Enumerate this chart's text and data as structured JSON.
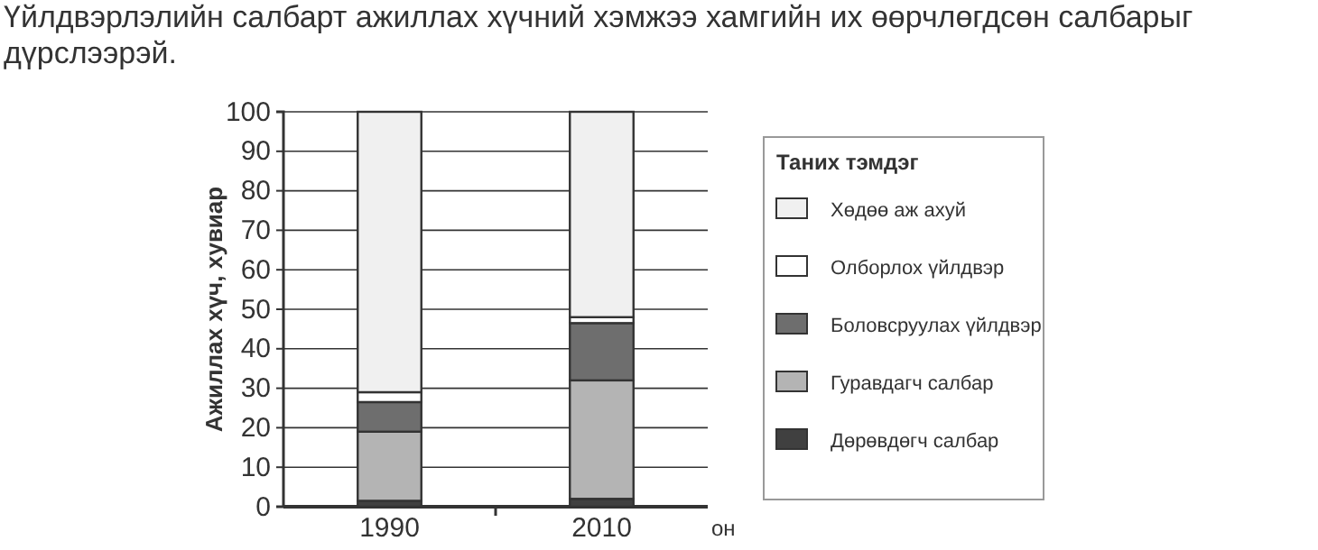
{
  "chart_data": {
    "type": "bar",
    "stacked": true,
    "title": "Үйлдвэрлэлийн салбарт ажиллах хүчний хэмжээ хамгийн их өөрчлөгдсөн салбарыг дүрслээрэй.",
    "xlabel": "он",
    "ylabel": "Ажиллах хүч, хувиар",
    "legend_title": "Таних тэмдэг",
    "categories": [
      "1990",
      "2010"
    ],
    "series": [
      {
        "name": "Дөрөвдөгч салбар",
        "color": "#404040",
        "values": [
          1.5,
          2
        ]
      },
      {
        "name": "Гуравдагч салбар",
        "color": "#b4b4b4",
        "values": [
          17.5,
          30
        ]
      },
      {
        "name": "Боловсруулах үйлдвэр",
        "color": "#6e6e6e",
        "values": [
          7.5,
          14.5
        ]
      },
      {
        "name": "Олборлох үйлдвэр",
        "color": "#ffffff",
        "values": [
          2.5,
          1.5
        ]
      },
      {
        "name": "Хөдөө аж ахуй",
        "color": "#f0f0f0",
        "values": [
          71,
          52
        ]
      }
    ],
    "ylim": [
      0,
      100
    ],
    "yticks": [
      0,
      10,
      20,
      30,
      40,
      50,
      60,
      70,
      80,
      90,
      100
    ],
    "grid": "y",
    "legend": "right"
  }
}
